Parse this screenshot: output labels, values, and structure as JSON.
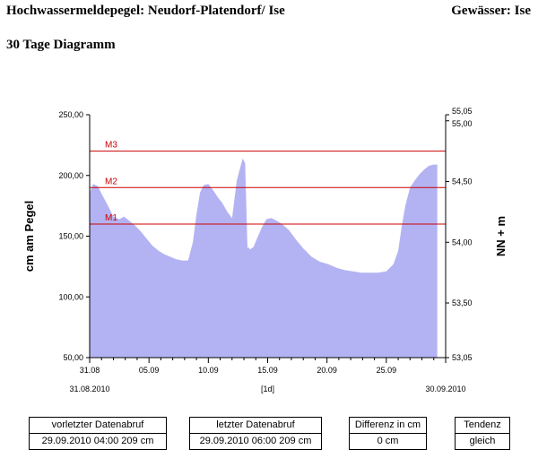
{
  "header": {
    "title": "Hochwassermeldepegel: Neudorf-Platendorf/ Ise",
    "water": "Gewässer: Ise",
    "subtitle": "30 Tage Diagramm"
  },
  "chart_data": {
    "type": "area",
    "color": "#b3b3f3",
    "ylabel": "cm am Pegel",
    "y2label": "NN + m",
    "ylim": [
      50,
      250
    ],
    "yticks": [
      "250,00",
      "200,00",
      "150,00",
      "100,00",
      "50,00"
    ],
    "yticks_values": [
      250,
      200,
      150,
      100,
      50
    ],
    "y2ticks": [
      "55,05",
      "55,00",
      "54,50",
      "54,00",
      "53,50",
      "53,05"
    ],
    "y2ticks_values": [
      55.05,
      55.0,
      54.5,
      54.0,
      53.5,
      53.05
    ],
    "xlim": [
      0,
      30
    ],
    "xticks": [
      "31.08",
      "05.09",
      "10.09",
      "15.09",
      "20.09",
      "25.09"
    ],
    "xticks_values": [
      0,
      5,
      10,
      15,
      20,
      25
    ],
    "x_start_label": "31.08.2010",
    "x_end_label": "30.09.2010",
    "x_unit_label": "[1d]",
    "thresholds": [
      {
        "name": "M1",
        "value": 160,
        "color": "#cc0000"
      },
      {
        "name": "M2",
        "value": 190,
        "color": "#cc0000"
      },
      {
        "name": "M3",
        "value": 220,
        "color": "#cc0000"
      }
    ],
    "series": [
      {
        "x": [
          0,
          0.3,
          0.7,
          1.0,
          1.5,
          2.0,
          2.5,
          2.9,
          3.3,
          3.8,
          4.3,
          4.8,
          5.3,
          5.8,
          6.3,
          6.8,
          7.3,
          7.8,
          8.3,
          8.7,
          9.0,
          9.3,
          9.6,
          10.0,
          10.4,
          10.8,
          11.2,
          11.6,
          12.0,
          12.4,
          12.7,
          12.9,
          13.1,
          13.3,
          13.4,
          13.5,
          13.8,
          14.1,
          14.5,
          14.9,
          15.3,
          15.7,
          16.2,
          16.8,
          17.4,
          18.0,
          18.7,
          19.4,
          20.1,
          20.8,
          21.5,
          22.2,
          22.9,
          23.6,
          24.3,
          25.0,
          25.6,
          26.0,
          26.3,
          26.6,
          27.0,
          27.4,
          27.8,
          28.2,
          28.6,
          29.0,
          29.3
        ],
        "y": [
          186,
          193,
          191,
          185,
          176,
          166,
          164,
          166,
          163,
          159,
          154,
          148,
          142,
          138,
          135,
          133,
          131,
          130,
          130,
          145,
          168,
          186,
          192,
          193,
          188,
          182,
          177,
          170,
          165,
          196,
          207,
          214,
          210,
          140,
          141,
          139,
          141,
          148,
          157,
          164,
          165,
          163,
          160,
          155,
          147,
          140,
          133,
          129,
          127,
          124,
          122,
          121,
          120,
          120,
          120,
          121,
          127,
          138,
          158,
          175,
          190,
          196,
          201,
          205,
          208,
          209,
          209
        ]
      }
    ]
  },
  "info": [
    {
      "header": "vorletzter Datenabruf",
      "value": "29.09.2010  04:00  209 cm"
    },
    {
      "header": "letzter Datenabruf",
      "value": "29.09.2010  06:00  209 cm"
    },
    {
      "header": "Differenz in cm",
      "value": "0 cm"
    },
    {
      "header": "Tendenz",
      "value": "gleich"
    }
  ]
}
